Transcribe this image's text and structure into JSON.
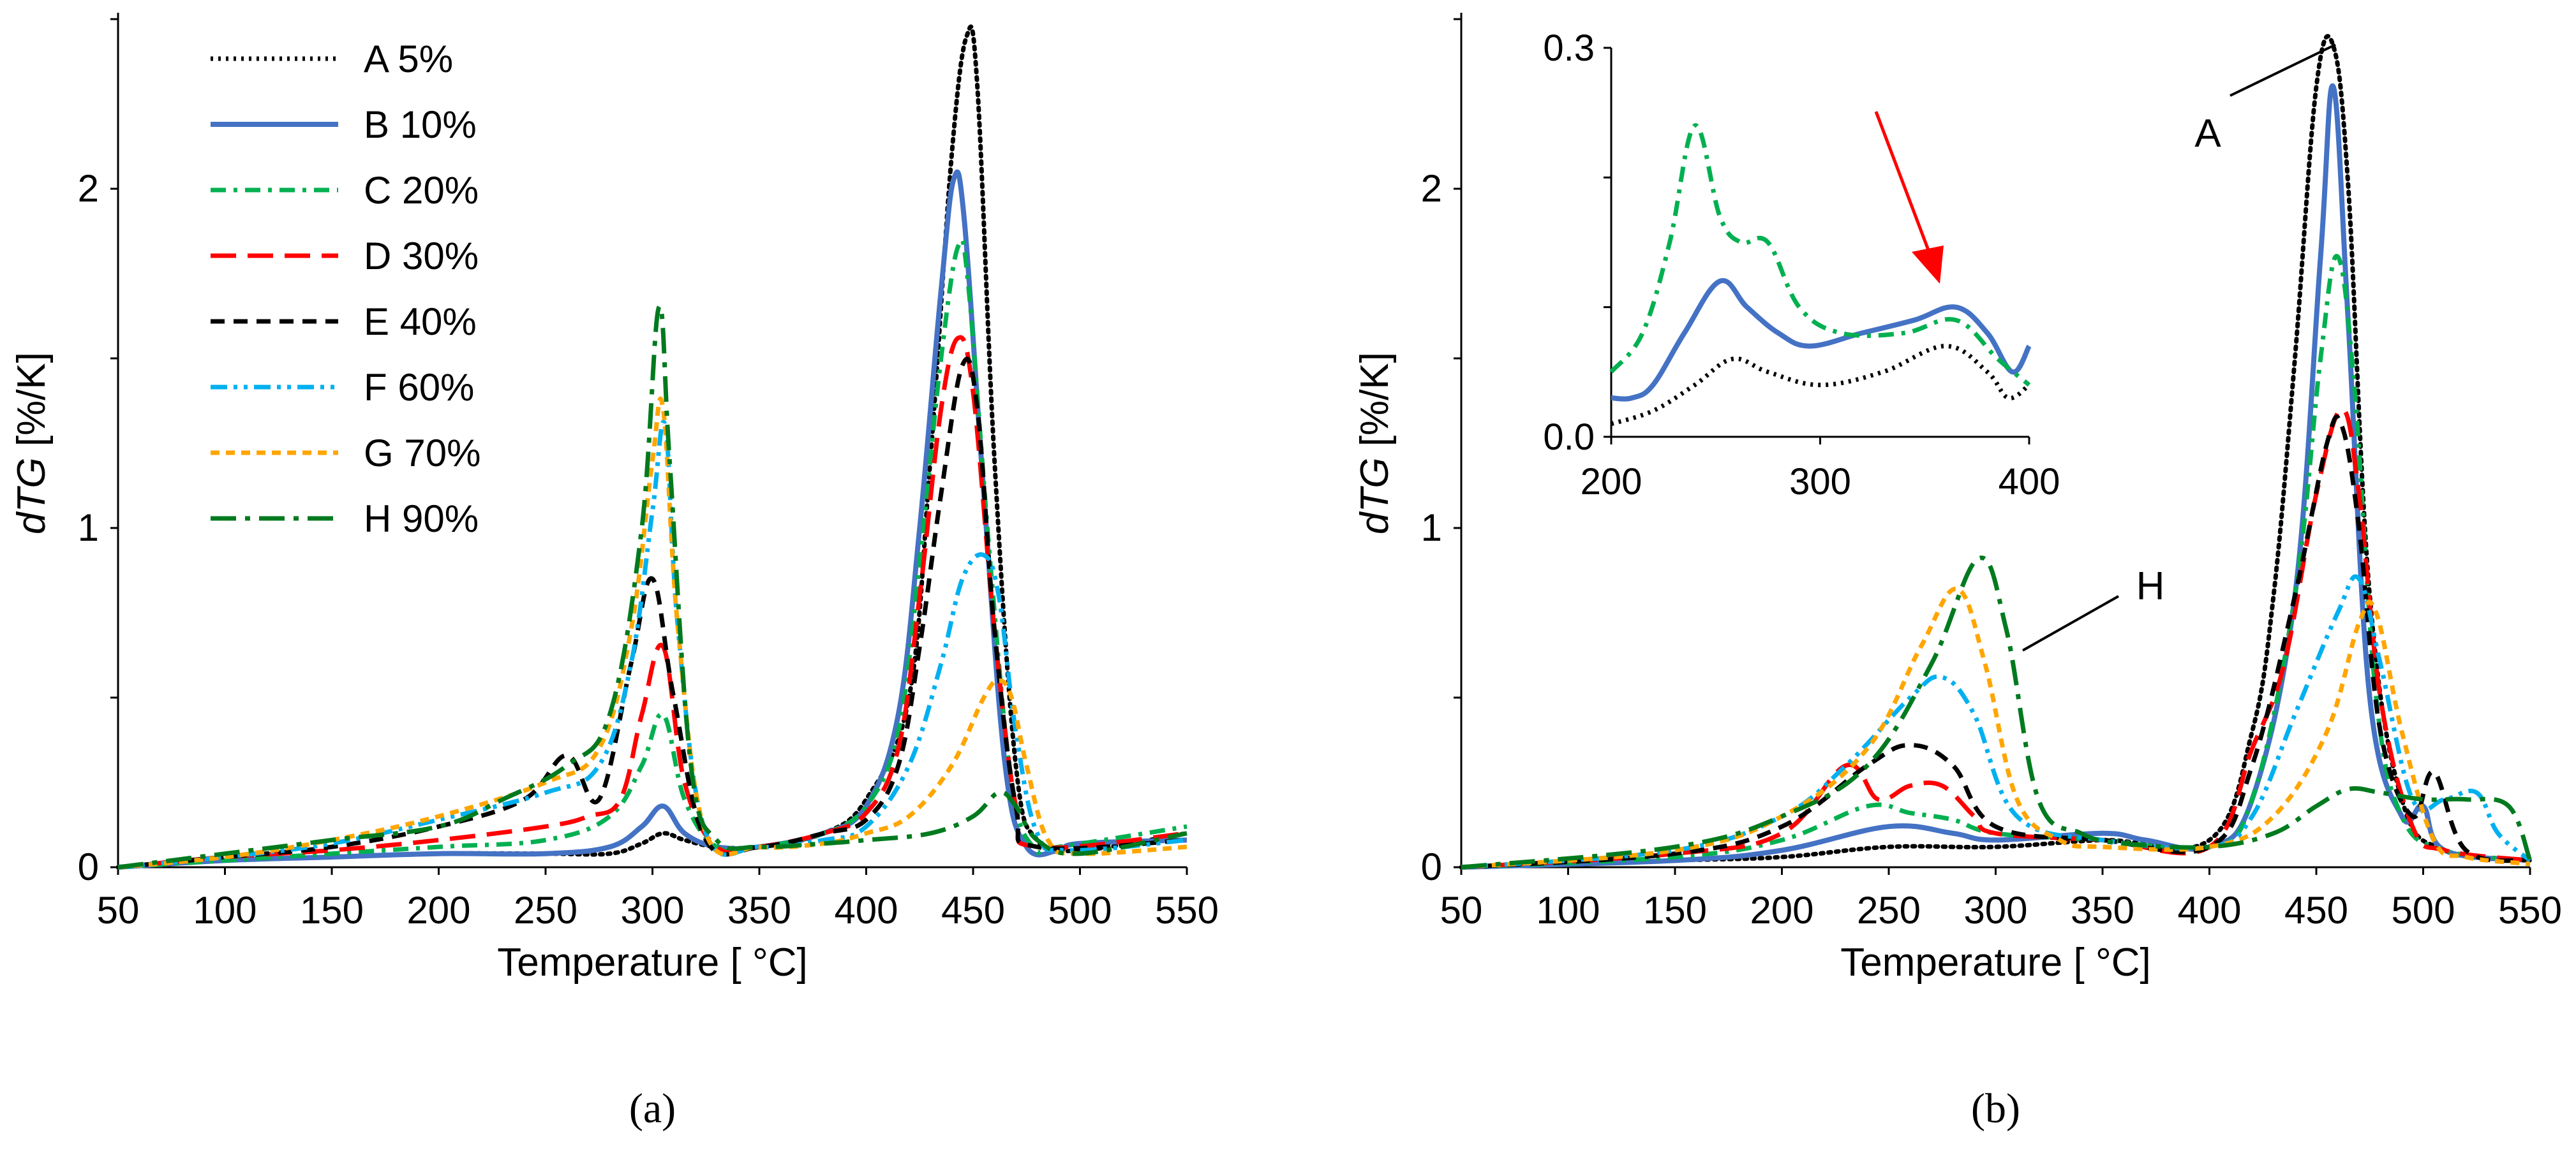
{
  "chart_data": [
    {
      "type": "line",
      "panel_label": "(a)",
      "xlabel": "Temperature [ °C]",
      "ylabel_italic": "dTG",
      "ylabel_rest": " [%/K]",
      "xlim": [
        50,
        550
      ],
      "ylim": [
        0,
        2.5
      ],
      "xticks": [
        50,
        100,
        150,
        200,
        250,
        300,
        350,
        400,
        450,
        500,
        550
      ],
      "yticks": [
        0,
        1,
        2
      ],
      "legend_title": "",
      "series": [
        {
          "name": "A 5%",
          "color": "#000000",
          "style": "dotted",
          "x": [
            50,
            100,
            150,
            200,
            250,
            280,
            295,
            305,
            315,
            330,
            350,
            380,
            400,
            420,
            430,
            440,
            447,
            452,
            460,
            470,
            480,
            500,
            550
          ],
          "y": [
            0,
            0.02,
            0.03,
            0.04,
            0.04,
            0.04,
            0.07,
            0.1,
            0.08,
            0.06,
            0.06,
            0.1,
            0.2,
            0.5,
            1.2,
            2.1,
            2.45,
            2.3,
            1.2,
            0.3,
            0.08,
            0.05,
            0.1
          ]
        },
        {
          "name": "B 10%",
          "color": "#4472C4",
          "style": "solid",
          "x": [
            50,
            100,
            150,
            200,
            250,
            280,
            295,
            305,
            315,
            330,
            350,
            380,
            400,
            415,
            425,
            435,
            441,
            446,
            455,
            465,
            475,
            490,
            500,
            550
          ],
          "y": [
            0,
            0.02,
            0.03,
            0.04,
            0.04,
            0.06,
            0.12,
            0.18,
            0.1,
            0.06,
            0.06,
            0.1,
            0.18,
            0.45,
            1.0,
            1.7,
            2.03,
            1.9,
            1.1,
            0.3,
            0.06,
            0.05,
            0.07,
            0.08
          ]
        },
        {
          "name": "C 20%",
          "color": "#00B050",
          "style": "dashdot",
          "x": [
            50,
            100,
            150,
            200,
            250,
            280,
            295,
            305,
            315,
            330,
            350,
            380,
            400,
            415,
            425,
            435,
            443,
            448,
            458,
            468,
            478,
            490,
            550
          ],
          "y": [
            0,
            0.02,
            0.04,
            0.06,
            0.08,
            0.15,
            0.3,
            0.45,
            0.2,
            0.06,
            0.06,
            0.1,
            0.18,
            0.4,
            0.9,
            1.5,
            1.83,
            1.7,
            0.9,
            0.25,
            0.06,
            0.06,
            0.12
          ]
        },
        {
          "name": "D 30%",
          "color": "#FF0000",
          "style": "longdash",
          "x": [
            50,
            100,
            150,
            200,
            250,
            270,
            285,
            295,
            305,
            315,
            330,
            350,
            380,
            400,
            415,
            425,
            435,
            443,
            450,
            460,
            470,
            480,
            550
          ],
          "y": [
            0,
            0.03,
            0.05,
            0.08,
            0.12,
            0.15,
            0.2,
            0.45,
            0.65,
            0.25,
            0.06,
            0.06,
            0.1,
            0.16,
            0.35,
            0.8,
            1.35,
            1.56,
            1.4,
            0.7,
            0.18,
            0.06,
            0.1
          ]
        },
        {
          "name": "E 40%",
          "color": "#000000",
          "style": "dash",
          "x": [
            50,
            100,
            150,
            200,
            240,
            260,
            275,
            290,
            300,
            310,
            325,
            350,
            380,
            400,
            415,
            425,
            435,
            445,
            452,
            460,
            470,
            480,
            550
          ],
          "y": [
            0,
            0.03,
            0.06,
            0.12,
            0.2,
            0.33,
            0.2,
            0.6,
            0.85,
            0.5,
            0.08,
            0.06,
            0.1,
            0.14,
            0.3,
            0.65,
            1.1,
            1.48,
            1.35,
            0.7,
            0.18,
            0.06,
            0.08
          ]
        },
        {
          "name": "F 60%",
          "color": "#00B0F0",
          "style": "dashdotdot",
          "x": [
            50,
            100,
            150,
            200,
            250,
            275,
            290,
            300,
            306,
            312,
            325,
            350,
            380,
            400,
            420,
            435,
            445,
            455,
            462,
            470,
            480,
            495,
            550
          ],
          "y": [
            0,
            0.03,
            0.07,
            0.14,
            0.22,
            0.3,
            0.6,
            1.05,
            1.3,
            0.7,
            0.1,
            0.06,
            0.08,
            0.12,
            0.3,
            0.6,
            0.85,
            0.92,
            0.8,
            0.4,
            0.1,
            0.05,
            0.08
          ]
        },
        {
          "name": "G 70%",
          "color": "#FFA500",
          "style": "shortdash",
          "x": [
            50,
            100,
            150,
            200,
            250,
            275,
            290,
            300,
            305,
            312,
            325,
            350,
            380,
            400,
            420,
            440,
            455,
            462,
            468,
            475,
            485,
            500,
            550
          ],
          "y": [
            0,
            0.03,
            0.08,
            0.15,
            0.25,
            0.35,
            0.7,
            1.2,
            1.35,
            0.7,
            0.1,
            0.06,
            0.07,
            0.1,
            0.15,
            0.3,
            0.5,
            0.55,
            0.5,
            0.3,
            0.08,
            0.04,
            0.06
          ]
        },
        {
          "name": "H 90%",
          "color": "#007A1E",
          "style": "longdashdot",
          "x": [
            50,
            100,
            150,
            200,
            230,
            260,
            280,
            295,
            303,
            308,
            318,
            330,
            350,
            380,
            400,
            430,
            450,
            462,
            470,
            480,
            500,
            550
          ],
          "y": [
            0,
            0.04,
            0.08,
            0.12,
            0.2,
            0.3,
            0.45,
            1.0,
            1.65,
            1.2,
            0.3,
            0.08,
            0.06,
            0.07,
            0.08,
            0.1,
            0.15,
            0.22,
            0.18,
            0.08,
            0.04,
            0.1
          ]
        }
      ]
    },
    {
      "type": "line",
      "panel_label": "(b)",
      "xlabel": "Temperature [ °C]",
      "ylabel_italic": "dTG",
      "ylabel_rest": " [%/K]",
      "xlim": [
        50,
        550
      ],
      "ylim": [
        0,
        2.5
      ],
      "xticks": [
        50,
        100,
        150,
        200,
        250,
        300,
        350,
        400,
        450,
        500,
        550
      ],
      "yticks": [
        0,
        1,
        2
      ],
      "annotations": [
        "A",
        "H"
      ],
      "series": [
        {
          "name": "A 5%",
          "color": "#000000",
          "style": "dotted",
          "x": [
            50,
            150,
            200,
            250,
            300,
            350,
            400,
            420,
            430,
            440,
            450,
            458,
            465,
            475,
            490,
            510,
            550
          ],
          "y": [
            0,
            0.02,
            0.03,
            0.06,
            0.06,
            0.08,
            0.08,
            0.4,
            0.8,
            1.5,
            2.3,
            2.42,
            2.0,
            0.8,
            0.2,
            0.05,
            0.02
          ]
        },
        {
          "name": "B 10%",
          "color": "#4472C4",
          "style": "solid",
          "x": [
            50,
            150,
            200,
            250,
            280,
            300,
            350,
            370,
            400,
            420,
            440,
            452,
            458,
            465,
            475,
            490,
            500,
            510,
            550
          ],
          "y": [
            0,
            0.02,
            0.05,
            0.12,
            0.1,
            0.08,
            0.1,
            0.08,
            0.06,
            0.2,
            0.8,
            1.8,
            2.3,
            1.6,
            0.5,
            0.15,
            0.18,
            0.05,
            0.02
          ]
        },
        {
          "name": "C 20%",
          "color": "#00B050",
          "style": "dashdot",
          "x": [
            50,
            150,
            200,
            240,
            260,
            280,
            300,
            350,
            400,
            420,
            440,
            452,
            460,
            468,
            478,
            490,
            510,
            550
          ],
          "y": [
            0,
            0.03,
            0.08,
            0.18,
            0.16,
            0.14,
            0.1,
            0.08,
            0.06,
            0.2,
            0.8,
            1.5,
            1.8,
            1.4,
            0.5,
            0.15,
            0.05,
            0.02
          ]
        },
        {
          "name": "D 30%",
          "color": "#FF0000",
          "style": "longdash",
          "x": [
            50,
            150,
            200,
            230,
            245,
            260,
            275,
            290,
            300,
            350,
            400,
            420,
            435,
            450,
            462,
            470,
            480,
            495,
            510,
            550
          ],
          "y": [
            0,
            0.04,
            0.1,
            0.3,
            0.2,
            0.24,
            0.24,
            0.15,
            0.1,
            0.08,
            0.06,
            0.35,
            0.6,
            1.1,
            1.35,
            1.1,
            0.5,
            0.12,
            0.05,
            0.02
          ]
        },
        {
          "name": "E 40%",
          "color": "#000000",
          "style": "dash",
          "x": [
            50,
            150,
            200,
            240,
            260,
            280,
            300,
            350,
            400,
            420,
            440,
            455,
            462,
            470,
            480,
            495,
            505,
            520,
            550
          ],
          "y": [
            0,
            0.04,
            0.12,
            0.3,
            0.36,
            0.3,
            0.12,
            0.08,
            0.06,
            0.3,
            0.8,
            1.25,
            1.3,
            1.0,
            0.4,
            0.15,
            0.28,
            0.05,
            0.02
          ]
        },
        {
          "name": "F 60%",
          "color": "#00B0F0",
          "style": "dashdotdot",
          "x": [
            50,
            150,
            200,
            230,
            260,
            275,
            290,
            310,
            350,
            400,
            420,
            440,
            460,
            470,
            480,
            495,
            510,
            525,
            535,
            550
          ],
          "y": [
            0,
            0.05,
            0.15,
            0.3,
            0.5,
            0.56,
            0.45,
            0.15,
            0.08,
            0.06,
            0.15,
            0.45,
            0.75,
            0.85,
            0.6,
            0.2,
            0.2,
            0.22,
            0.1,
            0.02
          ]
        },
        {
          "name": "G 70%",
          "color": "#FFA500",
          "style": "shortdash",
          "x": [
            50,
            150,
            200,
            240,
            265,
            282,
            295,
            310,
            330,
            350,
            400,
            430,
            455,
            470,
            478,
            490,
            505,
            520,
            550
          ],
          "y": [
            0,
            0.05,
            0.15,
            0.35,
            0.65,
            0.82,
            0.6,
            0.2,
            0.08,
            0.06,
            0.06,
            0.15,
            0.4,
            0.72,
            0.75,
            0.4,
            0.08,
            0.03,
            0.01
          ]
        },
        {
          "name": "H 90%",
          "color": "#007A1E",
          "style": "longdashdot",
          "x": [
            50,
            150,
            200,
            240,
            270,
            292,
            305,
            320,
            340,
            360,
            400,
            430,
            450,
            465,
            480,
            500,
            520,
            540,
            550
          ],
          "y": [
            0,
            0.06,
            0.15,
            0.3,
            0.6,
            0.91,
            0.7,
            0.2,
            0.1,
            0.07,
            0.06,
            0.1,
            0.18,
            0.23,
            0.22,
            0.2,
            0.2,
            0.18,
            0.02
          ]
        }
      ],
      "inset": {
        "xlim": [
          200,
          400
        ],
        "ylim": [
          0.0,
          0.3
        ],
        "xticks": [
          200,
          300,
          400
        ],
        "yticks_labels": [
          "0.0",
          "0.3"
        ],
        "series": [
          {
            "name": "A 5%",
            "color": "#000000",
            "style": "dotted",
            "x": [
              200,
              220,
              240,
              258,
              275,
              300,
              330,
              360,
              380,
              390,
              400
            ],
            "y": [
              0.01,
              0.02,
              0.04,
              0.06,
              0.05,
              0.04,
              0.05,
              0.07,
              0.05,
              0.03,
              0.04
            ]
          },
          {
            "name": "B 10%",
            "color": "#4472C4",
            "style": "solid",
            "x": [
              200,
              210,
              220,
              235,
              252,
              265,
              280,
              295,
              320,
              345,
              365,
              380,
              392,
              400
            ],
            "y": [
              0.03,
              0.03,
              0.04,
              0.08,
              0.12,
              0.1,
              0.08,
              0.07,
              0.08,
              0.09,
              0.1,
              0.08,
              0.05,
              0.07
            ]
          },
          {
            "name": "C 20%",
            "color": "#00B050",
            "style": "dashdot",
            "x": [
              200,
              215,
              228,
              240,
              252,
              262,
              275,
              290,
              310,
              340,
              365,
              385,
              400
            ],
            "y": [
              0.05,
              0.08,
              0.15,
              0.24,
              0.17,
              0.15,
              0.15,
              0.1,
              0.08,
              0.08,
              0.09,
              0.06,
              0.04
            ]
          }
        ]
      }
    }
  ],
  "legend": {
    "entries": [
      "A 5%",
      "B 10%",
      "C 20%",
      "D 30%",
      "E 40%",
      "F 60%",
      "G 70%",
      "H 90%"
    ]
  }
}
